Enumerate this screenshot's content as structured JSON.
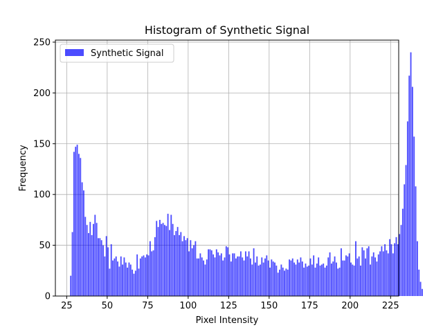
{
  "chart_data": {
    "type": "bar",
    "title": "Histogram of Synthetic Signal",
    "xlabel": "Pixel Intensity",
    "ylabel": "Frequency",
    "xlim": [
      18,
      230
    ],
    "ylim": [
      0,
      252
    ],
    "xticks": [
      25,
      50,
      75,
      100,
      125,
      150,
      175,
      200,
      225
    ],
    "yticks": [
      0,
      50,
      100,
      150,
      200,
      250
    ],
    "grid": true,
    "legend_position": "upper-left",
    "bar_color": "#0000ff",
    "series": [
      {
        "name": "Synthetic Signal",
        "bins_start": 27,
        "bin_width": 1,
        "values": [
          20,
          63,
          142,
          147,
          149,
          140,
          136,
          112,
          104,
          78,
          70,
          62,
          73,
          60,
          71,
          80,
          72,
          57,
          57,
          55,
          50,
          39,
          59,
          48,
          27,
          51,
          35,
          37,
          39,
          34,
          29,
          39,
          31,
          38,
          33,
          28,
          33,
          31,
          26,
          22,
          25,
          41,
          27,
          37,
          39,
          40,
          38,
          41,
          40,
          54,
          44,
          45,
          58,
          74,
          68,
          75,
          71,
          72,
          70,
          69,
          81,
          65,
          80,
          71,
          60,
          64,
          68,
          60,
          63,
          54,
          59,
          55,
          57,
          44,
          55,
          47,
          50,
          54,
          37,
          37,
          42,
          38,
          35,
          31,
          36,
          46,
          46,
          45,
          41,
          38,
          46,
          43,
          40,
          42,
          35,
          38,
          49,
          48,
          41,
          34,
          42,
          42,
          37,
          39,
          39,
          44,
          38,
          35,
          44,
          39,
          44,
          37,
          31,
          47,
          33,
          39,
          30,
          31,
          38,
          33,
          37,
          40,
          35,
          28,
          36,
          34,
          33,
          30,
          23,
          26,
          31,
          28,
          25,
          27,
          26,
          36,
          35,
          37,
          33,
          31,
          36,
          33,
          38,
          34,
          28,
          32,
          29,
          30,
          37,
          31,
          40,
          28,
          32,
          38,
          30,
          31,
          32,
          28,
          30,
          38,
          43,
          32,
          34,
          39,
          33,
          27,
          28,
          47,
          35,
          35,
          40,
          39,
          42,
          33,
          31,
          30,
          54,
          37,
          39,
          30,
          48,
          45,
          37,
          47,
          49,
          31,
          39,
          43,
          38,
          34,
          41,
          44,
          49,
          44,
          51,
          45,
          42,
          56,
          51,
          42,
          52,
          58,
          51,
          61,
          70,
          86,
          110,
          129,
          172,
          217,
          240,
          206,
          157,
          108,
          54,
          26,
          14,
          7
        ]
      }
    ]
  }
}
